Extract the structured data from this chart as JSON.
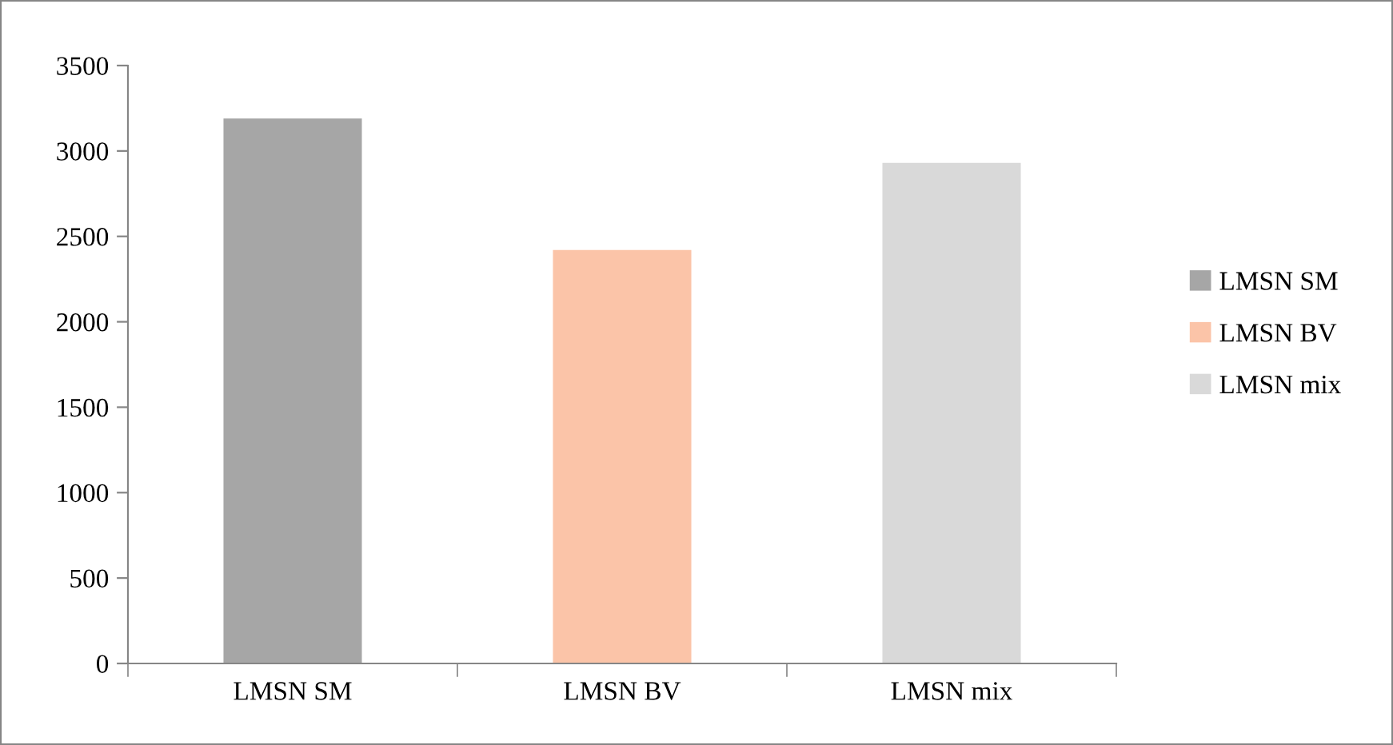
{
  "chart_data": {
    "type": "bar",
    "categories": [
      "LMSN SM",
      "LMSN BV",
      "LMSN mix"
    ],
    "series": [
      {
        "name": "LMSN SM",
        "color": "#a6a6a6",
        "values": [
          3190,
          null,
          null
        ]
      },
      {
        "name": "LMSN BV",
        "color": "#fbc4a8",
        "values": [
          null,
          2420,
          null
        ]
      },
      {
        "name": "LMSN mix",
        "color": "#d9d9d9",
        "values": [
          null,
          null,
          2930
        ]
      }
    ],
    "ylim": [
      0,
      3500
    ],
    "yticks": [
      0,
      500,
      1000,
      1500,
      2000,
      2500,
      3000,
      3500
    ],
    "grid": false,
    "legend": "right"
  }
}
